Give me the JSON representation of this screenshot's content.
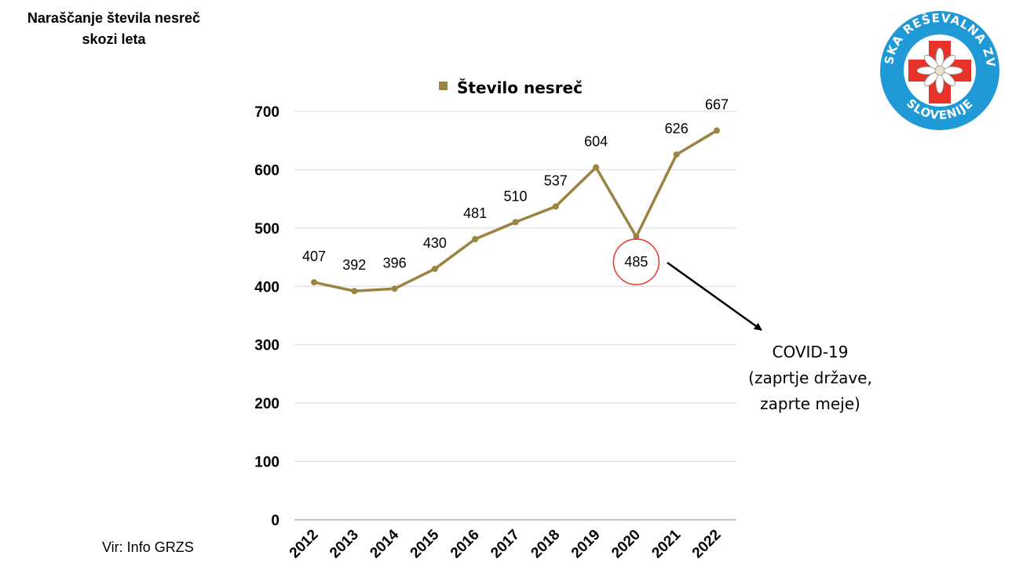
{
  "title_lines": [
    "Naraščanje števila nesreč",
    "skozi leta"
  ],
  "source": "Vir: Info GRZS",
  "logo": {
    "top_text": "GORSKA REŠEVALNA ZVEZA",
    "bottom_text": "SLOVENIJE",
    "ring_color": "#1f9ad6",
    "cross_color": "#e8332a"
  },
  "chart_data": {
    "type": "line",
    "title": "",
    "xlabel": "",
    "ylabel": "",
    "categories": [
      "2012",
      "2013",
      "2014",
      "2015",
      "2016",
      "2017",
      "2018",
      "2019",
      "2020",
      "2021",
      "2022"
    ],
    "series": [
      {
        "name": "Število nesreč",
        "color": "#9b8442",
        "values": [
          407,
          392,
          396,
          430,
          481,
          510,
          537,
          604,
          485,
          626,
          667
        ]
      }
    ],
    "ylim": [
      0,
      700
    ],
    "yticks": [
      0,
      100,
      200,
      300,
      400,
      500,
      600,
      700
    ],
    "grid": true,
    "legend": "top-center",
    "data_labels": true,
    "highlight": {
      "category": "2020",
      "shape": "circle",
      "color": "#e8332a"
    },
    "annotation": {
      "target": "2020",
      "lines": [
        "COVID-19",
        "(zaprtje države,",
        "zaprte meje)"
      ]
    }
  }
}
